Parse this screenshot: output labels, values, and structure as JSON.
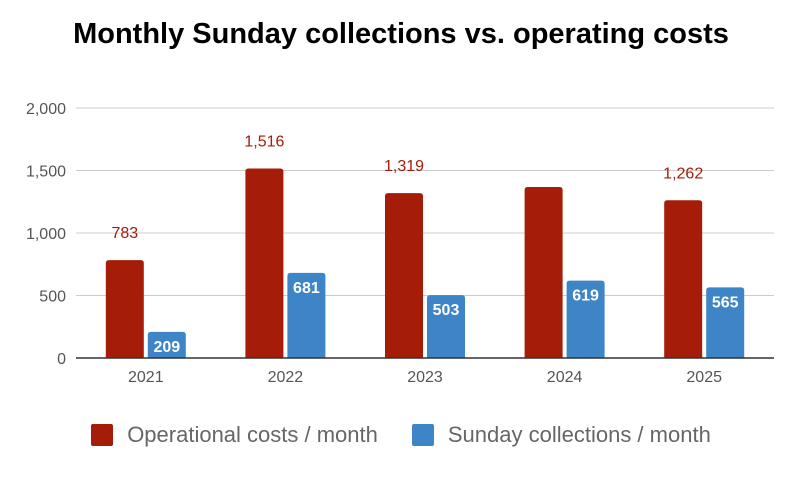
{
  "chart_data": {
    "type": "bar",
    "title": "Monthly Sunday collections vs. operating costs",
    "categories": [
      "2021",
      "2022",
      "2023",
      "2024",
      "2025"
    ],
    "series": [
      {
        "name": "Operational costs / month",
        "color": "#a51c08",
        "values": [
          783,
          1516,
          1319,
          1368,
          1262
        ],
        "labels": [
          "783",
          "1,516",
          "1,319",
          "",
          "1,262"
        ],
        "label_position": "above"
      },
      {
        "name": "Sunday collections / month",
        "color": "#3d85c6",
        "values": [
          209,
          681,
          503,
          619,
          565
        ],
        "labels": [
          "209",
          "681",
          "503",
          "619",
          "565"
        ],
        "label_position": "inside"
      }
    ],
    "yticks": [
      0,
      500,
      1000,
      1500,
      2000
    ],
    "ytick_labels": [
      "0",
      "500",
      "1,000",
      "1,500",
      "2,000"
    ],
    "ylim": [
      0,
      2000
    ],
    "xlabel": "",
    "ylabel": "",
    "grid": true,
    "legend": "bottom"
  }
}
